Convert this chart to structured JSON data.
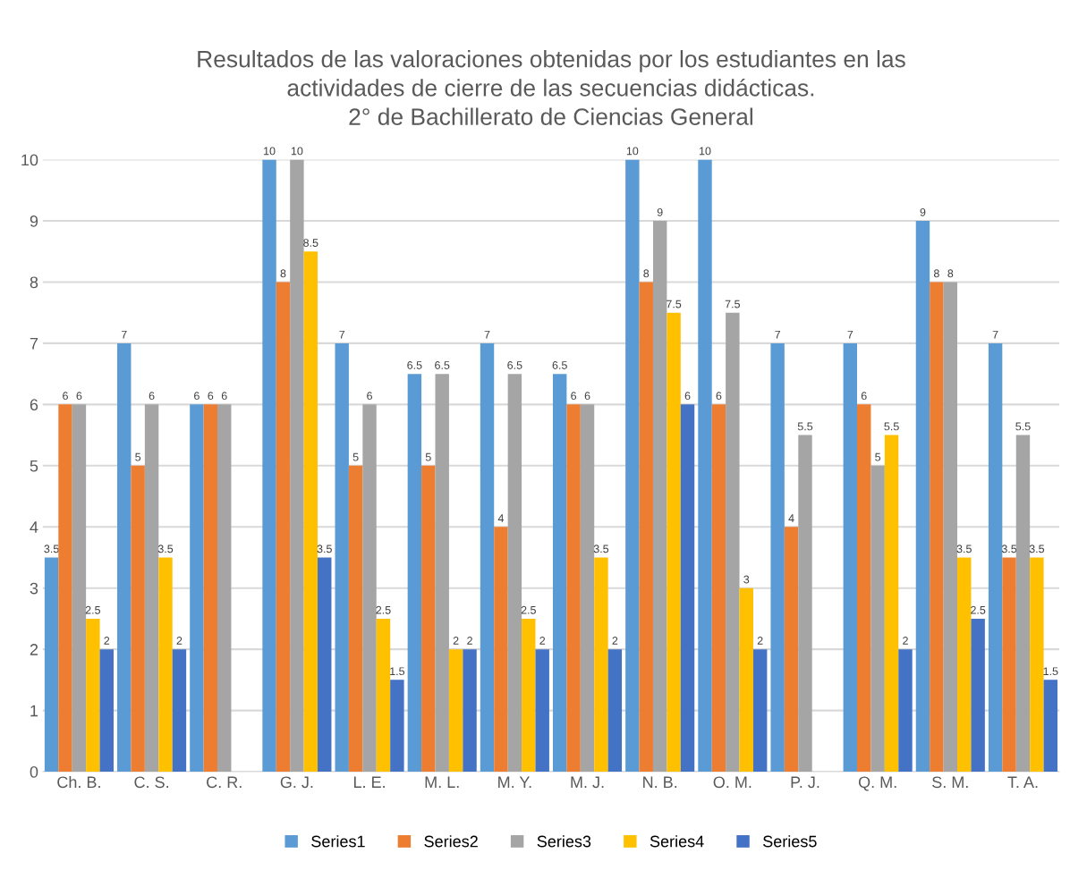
{
  "chart_data": {
    "type": "bar",
    "title": "Resultados de las valoraciones obtenidas por los estudiantes en las\nactividades de cierre de las secuencias didácticas.\n2° de Bachillerato de Ciencias General",
    "categories": [
      "Ch. B.",
      "C. S.",
      "C. R.",
      "G. J.",
      "L. E.",
      "M. L.",
      "M. Y.",
      "M. J.",
      "N. B.",
      "O. M.",
      "P. J.",
      "Q. M.",
      "S. M.",
      "T. A."
    ],
    "series": [
      {
        "name": "Series1",
        "color": "#5b9bd5",
        "values": [
          3.5,
          7,
          6,
          10,
          7,
          6.5,
          7,
          6.5,
          10,
          10,
          7,
          7,
          9,
          7
        ]
      },
      {
        "name": "Series2",
        "color": "#ed7d31",
        "values": [
          6,
          5,
          6,
          8,
          5,
          5,
          4,
          6,
          8,
          6,
          4,
          6,
          8,
          3.5
        ]
      },
      {
        "name": "Series3",
        "color": "#a5a5a5",
        "values": [
          6,
          6,
          6,
          10,
          6,
          6.5,
          6.5,
          6,
          9,
          7.5,
          5.5,
          5,
          8,
          5.5
        ]
      },
      {
        "name": "Series4",
        "color": "#ffc000",
        "values": [
          2.5,
          3.5,
          null,
          8.5,
          2.5,
          2,
          2.5,
          3.5,
          7.5,
          3,
          null,
          5.5,
          3.5,
          3.5
        ]
      },
      {
        "name": "Series5",
        "color": "#4472c4",
        "values": [
          2,
          2,
          null,
          3.5,
          1.5,
          2,
          2,
          2,
          6,
          2,
          null,
          2,
          2.5,
          1.5
        ]
      }
    ],
    "ylim": [
      0,
      10
    ],
    "yticks": [
      0,
      1,
      2,
      3,
      4,
      5,
      6,
      7,
      8,
      9,
      10
    ],
    "grid": "y",
    "legend": "bottom",
    "data_labels": true
  }
}
